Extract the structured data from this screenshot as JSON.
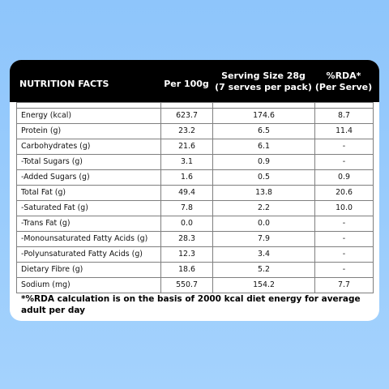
{
  "header": {
    "name": "NUTRITION FACTS",
    "per100": "Per 100g",
    "serving_line1": "Serving Size 28g",
    "serving_line2": "(7 serves per pack)",
    "rda_line1": "%RDA*",
    "rda_line2": "(Per Serve)"
  },
  "rows": [
    {
      "name": "Energy (kcal)",
      "per100": "623.7",
      "serving": "174.6",
      "rda": "8.7"
    },
    {
      "name": "Protein (g)",
      "per100": "23.2",
      "serving": "6.5",
      "rda": "11.4"
    },
    {
      "name": "Carbohydrates (g)",
      "per100": "21.6",
      "serving": "6.1",
      "rda": "-"
    },
    {
      "name": "-Total Sugars (g)",
      "per100": "3.1",
      "serving": "0.9",
      "rda": "-"
    },
    {
      "name": "-Added Sugars (g)",
      "per100": "1.6",
      "serving": "0.5",
      "rda": "0.9"
    },
    {
      "name": "Total Fat (g)",
      "per100": "49.4",
      "serving": "13.8",
      "rda": "20.6"
    },
    {
      "name": "-Saturated Fat (g)",
      "per100": "7.8",
      "serving": "2.2",
      "rda": "10.0"
    },
    {
      "name": "-Trans Fat (g)",
      "per100": "0.0",
      "serving": "0.0",
      "rda": "-"
    },
    {
      "name": "-Monounsaturated Fatty Acids (g)",
      "per100": "28.3",
      "serving": "7.9",
      "rda": "-"
    },
    {
      "name": "-Polyunsaturated Fatty Acids (g)",
      "per100": "12.3",
      "serving": "3.4",
      "rda": "-"
    },
    {
      "name": "Dietary Fibre (g)",
      "per100": "18.6",
      "serving": "5.2",
      "rda": "-"
    },
    {
      "name": "Sodium (mg)",
      "per100": "550.7",
      "serving": "154.2",
      "rda": "7.7"
    }
  ],
  "footnote": "*%RDA calculation is on the basis of 2000 kcal diet energy for average adult per day"
}
